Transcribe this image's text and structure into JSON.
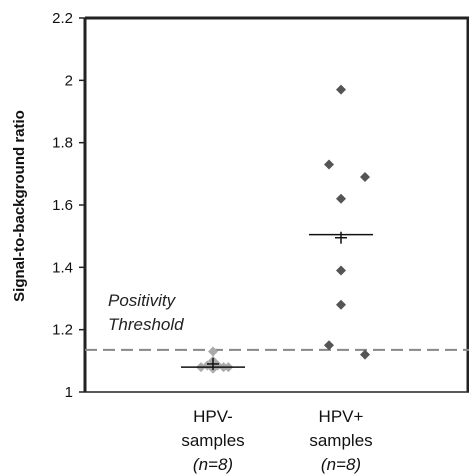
{
  "chart_data": {
    "type": "scatter",
    "ylabel": "Signal-to-background ratio",
    "ylim": [
      1,
      2.2
    ],
    "yticks": [
      "1",
      "1.2",
      "1.4",
      "1.6",
      "1.8",
      "2",
      "2.2"
    ],
    "grid": false,
    "categories": [
      {
        "line1": "HPV-",
        "line2": "samples",
        "line3": "(n=8)"
      },
      {
        "line1": "HPV+",
        "line2": "samples",
        "line3": "(n=8)"
      }
    ],
    "series": [
      {
        "category": 0,
        "color": "#aaaaaa",
        "points": [
          {
            "offset": -0.25,
            "y": 1.08
          },
          {
            "offset": -0.12,
            "y": 1.085
          },
          {
            "offset": 0.0,
            "y": 1.13
          },
          {
            "offset": 0.0,
            "y": 1.1
          },
          {
            "offset": 0.0,
            "y": 1.075
          },
          {
            "offset": 0.1,
            "y": 1.085
          },
          {
            "offset": 0.22,
            "y": 1.08
          },
          {
            "offset": 0.32,
            "y": 1.08
          }
        ],
        "mean": 1.09,
        "median": 1.08
      },
      {
        "category": 1,
        "color": "#555555",
        "points": [
          {
            "offset": 0.0,
            "y": 1.97
          },
          {
            "offset": -0.25,
            "y": 1.73
          },
          {
            "offset": 0.5,
            "y": 1.69
          },
          {
            "offset": 0.0,
            "y": 1.62
          },
          {
            "offset": 0.0,
            "y": 1.39
          },
          {
            "offset": 0.0,
            "y": 1.28
          },
          {
            "offset": -0.25,
            "y": 1.15
          },
          {
            "offset": 0.5,
            "y": 1.12
          }
        ],
        "mean": 1.495,
        "median": 1.505
      }
    ],
    "threshold": {
      "y": 1.135,
      "label_line1": "Positivity",
      "label_line2": "Threshold"
    },
    "marker_shape": "diamond",
    "mean_marker": "plus",
    "median_marker": "horizontal-line"
  }
}
